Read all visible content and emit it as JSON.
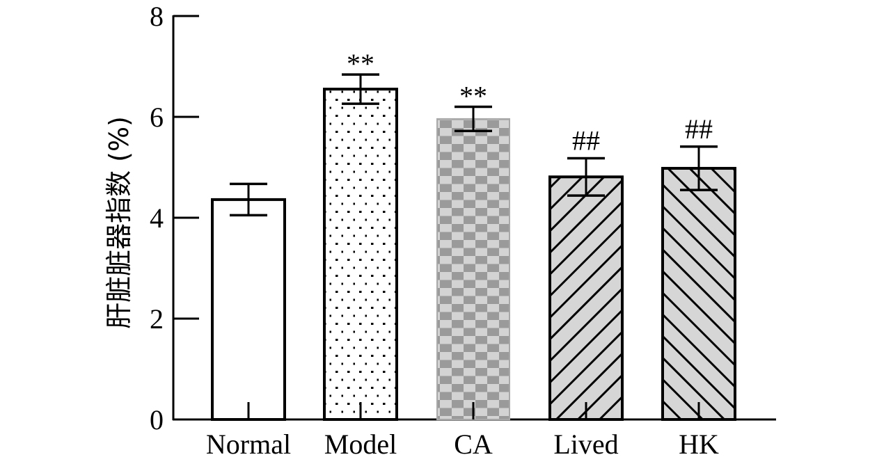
{
  "chart_data": {
    "type": "bar",
    "title": "",
    "xlabel": "",
    "ylabel": "肝脏脏器指数 (%)",
    "ylim": [
      0,
      8
    ],
    "yticks": [
      "0",
      "2",
      "4",
      "6",
      "8"
    ],
    "categories": [
      "Normal",
      "Model",
      "CA",
      "Lived",
      "HK"
    ],
    "values": [
      4.36,
      6.55,
      5.96,
      4.81,
      4.98
    ],
    "errors": [
      0.31,
      0.29,
      0.24,
      0.37,
      0.43
    ],
    "annotations": [
      "",
      "**",
      "**",
      "##",
      "##"
    ],
    "patterns": [
      "white",
      "dots",
      "checker",
      "hatch-right",
      "hatch-left"
    ],
    "grid": false,
    "legend": "none"
  }
}
